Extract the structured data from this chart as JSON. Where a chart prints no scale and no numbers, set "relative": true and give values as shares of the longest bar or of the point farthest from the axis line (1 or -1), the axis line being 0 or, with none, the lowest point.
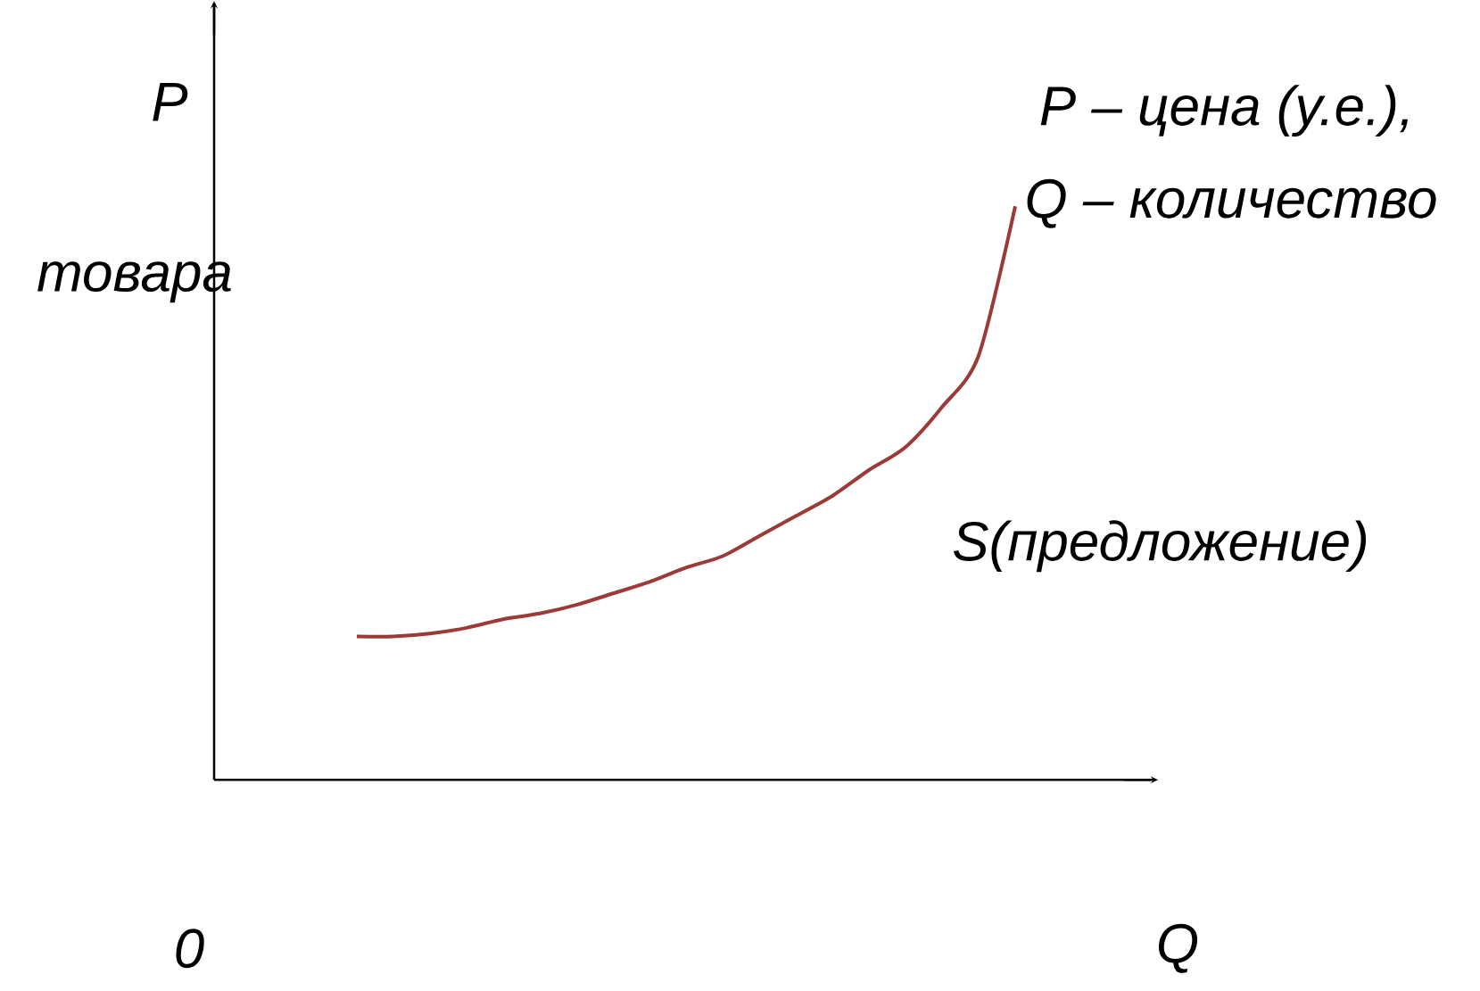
{
  "chart_data": {
    "type": "line",
    "relative": true,
    "xlabel": "Q",
    "ylabel": "P",
    "categories": [
      null,
      null,
      null,
      null,
      null,
      null,
      null,
      null,
      null,
      null,
      null,
      null,
      null,
      null,
      null,
      null,
      null,
      null,
      null
    ],
    "series": [
      {
        "name": "S(предложение)",
        "color": "#9b3a36",
        "values": [
          0.25,
          0.25,
          0.255,
          0.265,
          0.28,
          0.29,
          0.305,
          0.325,
          0.345,
          0.37,
          0.39,
          0.425,
          0.46,
          0.495,
          0.54,
          0.58,
          0.65,
          0.74,
          1.0
        ]
      }
    ],
    "annotations": [
      "0",
      "P – цена (у.е.),",
      "Q – количество",
      "товара"
    ]
  }
}
